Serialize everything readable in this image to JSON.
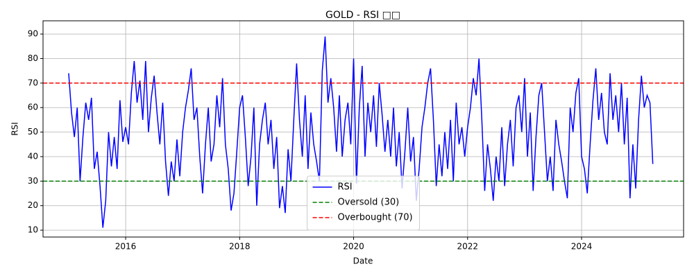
{
  "chart_data": {
    "type": "line",
    "title": "GOLD - RSI □□",
    "x_label": "Date",
    "y_label": "RSI",
    "x": [
      2015.0,
      2015.05,
      2015.1,
      2015.15,
      2015.2,
      2015.25,
      2015.3,
      2015.35,
      2015.4,
      2015.45,
      2015.5,
      2015.55,
      2015.6,
      2015.65,
      2015.7,
      2015.75,
      2015.8,
      2015.85,
      2015.9,
      2015.95,
      2016.0,
      2016.05,
      2016.1,
      2016.15,
      2016.2,
      2016.25,
      2016.3,
      2016.35,
      2016.4,
      2016.45,
      2016.5,
      2016.55,
      2016.6,
      2016.65,
      2016.7,
      2016.75,
      2016.8,
      2016.85,
      2016.9,
      2016.95,
      2017.0,
      2017.05,
      2017.1,
      2017.15,
      2017.2,
      2017.25,
      2017.3,
      2017.35,
      2017.4,
      2017.45,
      2017.5,
      2017.55,
      2017.6,
      2017.65,
      2017.7,
      2017.75,
      2017.8,
      2017.85,
      2017.9,
      2017.95,
      2018.0,
      2018.05,
      2018.1,
      2018.15,
      2018.2,
      2018.25,
      2018.3,
      2018.35,
      2018.4,
      2018.45,
      2018.5,
      2018.55,
      2018.6,
      2018.65,
      2018.7,
      2018.75,
      2018.8,
      2018.85,
      2018.9,
      2018.95,
      2019.0,
      2019.05,
      2019.1,
      2019.15,
      2019.2,
      2019.25,
      2019.3,
      2019.35,
      2019.4,
      2019.45,
      2019.5,
      2019.55,
      2019.6,
      2019.65,
      2019.7,
      2019.75,
      2019.8,
      2019.85,
      2019.9,
      2019.95,
      2020.0,
      2020.05,
      2020.1,
      2020.15,
      2020.2,
      2020.25,
      2020.3,
      2020.35,
      2020.4,
      2020.45,
      2020.5,
      2020.55,
      2020.6,
      2020.65,
      2020.7,
      2020.75,
      2020.8,
      2020.85,
      2020.9,
      2020.95,
      2021.0,
      2021.05,
      2021.1,
      2021.15,
      2021.2,
      2021.25,
      2021.3,
      2021.35,
      2021.4,
      2021.45,
      2021.5,
      2021.55,
      2021.6,
      2021.65,
      2021.7,
      2021.75,
      2021.8,
      2021.85,
      2021.9,
      2021.95,
      2022.0,
      2022.05,
      2022.1,
      2022.15,
      2022.2,
      2022.25,
      2022.3,
      2022.35,
      2022.4,
      2022.45,
      2022.5,
      2022.55,
      2022.6,
      2022.65,
      2022.7,
      2022.75,
      2022.8,
      2022.85,
      2022.9,
      2022.95,
      2023.0,
      2023.05,
      2023.1,
      2023.15,
      2023.2,
      2023.25,
      2023.3,
      2023.35,
      2023.4,
      2023.45,
      2023.5,
      2023.55,
      2023.6,
      2023.65,
      2023.7,
      2023.75,
      2023.8,
      2023.85,
      2023.9,
      2023.95,
      2024.0,
      2024.05,
      2024.1,
      2024.15,
      2024.2,
      2024.25,
      2024.3,
      2024.35,
      2024.4,
      2024.45,
      2024.5,
      2024.55,
      2024.6,
      2024.65,
      2024.7,
      2024.75,
      2024.8,
      2024.85,
      2024.9,
      2024.95,
      2025.0,
      2025.05,
      2025.1,
      2025.15,
      2025.2,
      2025.25
    ],
    "series": [
      {
        "name": "RSI",
        "color": "#0000ff",
        "values": [
          74,
          58,
          48,
          60,
          30,
          48,
          62,
          55,
          64,
          35,
          42,
          28,
          11,
          22,
          50,
          36,
          48,
          35,
          63,
          46,
          52,
          45,
          66,
          79,
          62,
          71,
          55,
          79,
          50,
          64,
          73,
          58,
          45,
          62,
          38,
          24,
          38,
          30,
          47,
          32,
          50,
          60,
          67,
          76,
          55,
          60,
          40,
          25,
          45,
          60,
          38,
          45,
          65,
          52,
          72,
          45,
          35,
          18,
          25,
          42,
          60,
          65,
          48,
          28,
          40,
          60,
          20,
          45,
          55,
          62,
          45,
          55,
          35,
          48,
          19,
          28,
          17,
          43,
          30,
          55,
          78,
          55,
          40,
          65,
          35,
          58,
          45,
          38,
          30,
          75,
          89,
          62,
          72,
          60,
          42,
          65,
          40,
          55,
          62,
          45,
          80,
          29,
          60,
          77,
          40,
          62,
          50,
          65,
          44,
          70,
          57,
          42,
          55,
          40,
          60,
          36,
          50,
          27,
          42,
          60,
          38,
          48,
          22,
          35,
          52,
          60,
          70,
          76,
          55,
          28,
          45,
          32,
          50,
          35,
          55,
          30,
          62,
          45,
          52,
          40,
          52,
          60,
          72,
          65,
          80,
          55,
          26,
          45,
          35,
          22,
          40,
          30,
          52,
          28,
          45,
          55,
          36,
          60,
          65,
          50,
          72,
          40,
          58,
          26,
          48,
          65,
          70,
          50,
          30,
          40,
          26,
          55,
          45,
          38,
          30,
          23,
          60,
          50,
          66,
          72,
          40,
          35,
          25,
          45,
          63,
          76,
          55,
          66,
          50,
          45,
          74,
          55,
          65,
          50,
          70,
          45,
          64,
          23,
          45,
          27,
          55,
          73,
          60,
          65,
          62,
          37
        ]
      }
    ],
    "hlines": [
      {
        "name": "Oversold (30)",
        "value": 30,
        "color": "#008000"
      },
      {
        "name": "Overbought (70)",
        "value": 70,
        "color": "#ff0000"
      }
    ],
    "xlim": [
      2014.55,
      2025.79
    ],
    "xticks": [
      2016,
      2018,
      2020,
      2022,
      2024
    ],
    "ylim": [
      7.2,
      95.4
    ],
    "yticks": [
      10,
      20,
      30,
      40,
      50,
      60,
      70,
      80,
      90
    ],
    "grid": true,
    "legend": "lower center"
  }
}
